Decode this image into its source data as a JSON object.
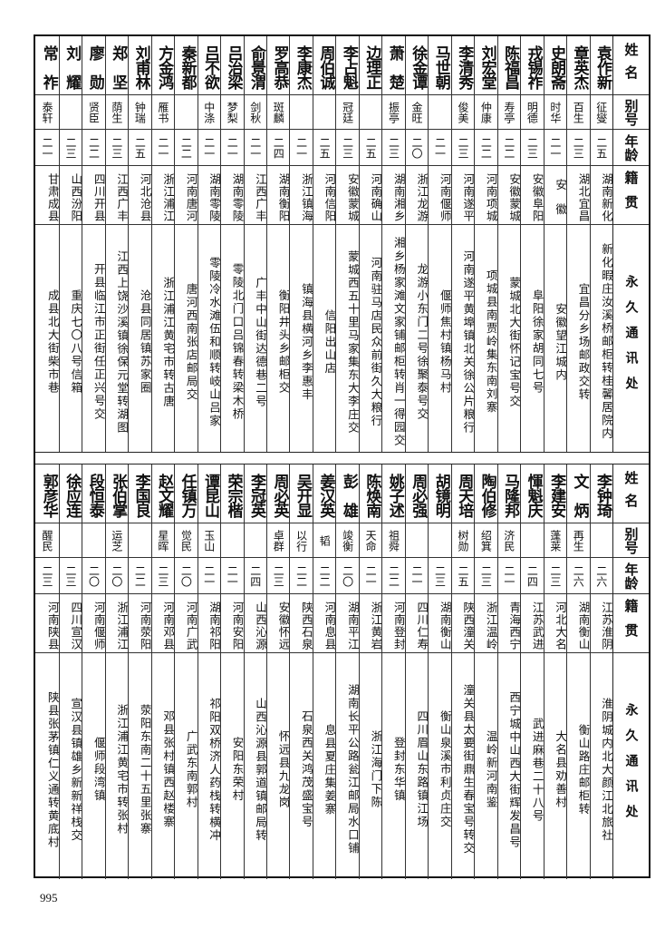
{
  "header_labels": {
    "name": "姓名",
    "alias": "别号",
    "age": "年龄",
    "native": "籍贯",
    "address": "永久通讯处"
  },
  "sections": [
    {
      "people": [
        {
          "name": "袁作新",
          "alias": "征燮",
          "age": "二五",
          "native": "湖南新化",
          "address": "新化暇庄汝溪桥邮柜转桂馨居院内"
        },
        {
          "name": "章英杰",
          "alias": "百生",
          "age": "二三",
          "native": "湖北宜昌",
          "address": "宜昌分乡场邮政交转"
        },
        {
          "name": "史朗斋",
          "alias": "时华",
          "age": "二一",
          "native": "安　徽",
          "address": "安徽望江城内"
        },
        {
          "name": "戎锡祚",
          "alias": "明德",
          "age": "二三",
          "native": "安徽阜阳",
          "address": "阜阳徐家胡同七号"
        },
        {
          "name": "陈福昌",
          "alias": "寿亭",
          "age": "二二",
          "native": "安徽蒙城",
          "address": "蒙城北大街怀记宝号交"
        },
        {
          "name": "刘宏堂",
          "alias": "仲康",
          "age": "二二",
          "native": "河南项城",
          "address": "项城县南贾岭集东南刘寨"
        },
        {
          "name": "李清秀",
          "alias": "俊美",
          "age": "二三",
          "native": "河南遂平",
          "address": "河南遂平黄埠镇北关徐公片粮行"
        },
        {
          "name": "马世朝",
          "alias": "",
          "age": "二一",
          "native": "河南偃师",
          "address": "偃师焦村镇杨马村"
        },
        {
          "name": "徐金谭",
          "alias": "金旺",
          "age": "二〇",
          "native": "浙江龙游",
          "address": "龙游小东门二号徐聚泰号交"
        },
        {
          "name": "萧　楚",
          "alias": "振亭",
          "age": "二三",
          "native": "湖南湘乡",
          "address": "湘乡杨家滩文家铺邮柜转肖一得园交"
        },
        {
          "name": "边理正",
          "alias": "",
          "age": "二五",
          "native": "河南确山",
          "address": "河南驻马店民众前街久大粮行"
        },
        {
          "name": "李占魁",
          "alias": "冠廷",
          "age": "二三",
          "native": "安徽蒙城",
          "address": "蒙城西五十里马家集东大李庄交"
        },
        {
          "name": "周伯诚",
          "alias": "",
          "age": "二五",
          "native": "河南信阳",
          "address": "信阳出山店"
        },
        {
          "name": "李康杰",
          "alias": "",
          "age": "二一",
          "native": "浙江镇海",
          "address": "镇海县横河乡李惠丰"
        },
        {
          "name": "罗高恭",
          "alias": "斑麟",
          "age": "二四",
          "native": "湖南衡阳",
          "address": "衡阳井头乡邮柜交"
        },
        {
          "name": "俞景渭",
          "alias": "剑秋",
          "age": "二一",
          "native": "江西广丰",
          "address": "广丰中山街达德巷二号"
        },
        {
          "name": "吕治梁",
          "alias": "梦梨",
          "age": "二一",
          "native": "湖南零陵",
          "address": "零陵北门口吕锦春转梁木桥"
        },
        {
          "name": "吕不欲",
          "alias": "中涤",
          "age": "二一",
          "native": "湖南零陵",
          "address": "零陵冷水滩伍和顺转岐山吕家"
        },
        {
          "name": "秦新都",
          "alias": "",
          "age": "二二",
          "native": "河南唐河",
          "address": "唐河西南张店邮局交"
        },
        {
          "name": "方金鸿",
          "alias": "雁书",
          "age": "二一",
          "native": "浙江浦江",
          "address": "浙江浦江黄宅市转古唐"
        },
        {
          "name": "刘甫林",
          "alias": "钟瑞",
          "age": "二五",
          "native": "河北沧县",
          "address": "沧县同居镇苏家圈"
        },
        {
          "name": "郑　坚",
          "alias": "荫生",
          "age": "二三",
          "native": "江西广丰",
          "address": "江西上饶沙溪镇徐保元堂转湖图"
        },
        {
          "name": "廖　勋",
          "alias": "贤臣",
          "age": "二二",
          "native": "四川开县",
          "address": "开县临江市正街任正兴号交"
        },
        {
          "name": "刘　耀",
          "alias": "",
          "age": "二三",
          "native": "山西汾阳",
          "address": "重庆七〇八号信箱"
        },
        {
          "name": "常　祚",
          "alias": "泰轩",
          "age": "二一",
          "native": "甘肃成县",
          "address": "成县北大街柴市巷"
        }
      ]
    },
    {
      "people": [
        {
          "name": "李钟琦",
          "alias": "",
          "age": "二六",
          "native": "江苏淮阴",
          "address": "淮阴城内北大颜江北旅社"
        },
        {
          "name": "文　炳",
          "alias": "再生",
          "age": "二六",
          "native": "湖南衡山",
          "address": "衡山路庄邮柜转"
        },
        {
          "name": "李建安",
          "alias": "蓬莱",
          "age": "二三",
          "native": "河北大名",
          "address": "大名县劝善村"
        },
        {
          "name": "惲魁庆",
          "alias": "",
          "age": "二四",
          "native": "江苏武进",
          "address": "武进麻巷二十八号"
        },
        {
          "name": "马隆邦",
          "alias": "济民",
          "age": "二一",
          "native": "青海西宁",
          "address": "西宁城中山西大街辉发昌号"
        },
        {
          "name": "陶伯修",
          "alias": "绍箕",
          "age": "二三",
          "native": "浙江温岭",
          "address": "温岭新河南鉴"
        },
        {
          "name": "周天培",
          "alias": "树勋",
          "age": "二五",
          "native": "陕西潼关",
          "address": "潼关县太要街鼎生春宝号转交"
        },
        {
          "name": "胡镜明",
          "alias": "",
          "age": "二三",
          "native": "湖南衡山",
          "address": "衡山泉溪市利贞庄交"
        },
        {
          "name": "周必强",
          "alias": "",
          "age": "二一",
          "native": "四川仁寿",
          "address": "四川眉山东路镇江场"
        },
        {
          "name": "姚子述",
          "alias": "祖舜",
          "age": "二二",
          "native": "河南登封",
          "address": "登封东华镇"
        },
        {
          "name": "陈焕南",
          "alias": "天命",
          "age": "二一",
          "native": "浙江黄岩",
          "address": "浙江海门下陈"
        },
        {
          "name": "彭　雄",
          "alias": "竣衡",
          "age": "二〇",
          "native": "湖南平江",
          "address": "湖南长平公路瓮江邮局水口铺"
        },
        {
          "name": "姜汉英",
          "alias": "韬",
          "age": "二二",
          "native": "河南息县",
          "address": "息县夏庄集姜寨"
        },
        {
          "name": "吴开显",
          "alias": "以行",
          "age": "二二",
          "native": "陕西石泉",
          "address": "石泉西关鸿茂盛宝号"
        },
        {
          "name": "周必英",
          "alias": "卓群",
          "age": "二三",
          "native": "安徽怀远",
          "address": "怀远县九龙岗"
        },
        {
          "name": "李冠英",
          "alias": "",
          "age": "二四",
          "native": "山西沁源",
          "address": "山西沁源县郭道镇邮局转"
        },
        {
          "name": "荣宗楷",
          "alias": "",
          "age": "二一",
          "native": "河南安阳",
          "address": "安阳东荣村"
        },
        {
          "name": "谭昆山",
          "alias": "玉山",
          "age": "二一",
          "native": "湖南祁阳",
          "address": "祁阳双桥济人药栈转横冲"
        },
        {
          "name": "任镇万",
          "alias": "觉民",
          "age": "二〇",
          "native": "河南广武",
          "address": "广武东南郭村"
        },
        {
          "name": "赵文耀",
          "alias": "星晖",
          "age": "二三",
          "native": "河南邓县",
          "address": "邓县张村镇西赵楼寨"
        },
        {
          "name": "李国良",
          "alias": "",
          "age": "二二",
          "native": "河南荥阳",
          "address": "荥阳东南二十五里张寨"
        },
        {
          "name": "张伯掌",
          "alias": "运芝",
          "age": "二〇",
          "native": "浙江浦江",
          "address": "浙江浦江黄宅市转张村"
        },
        {
          "name": "段恒泰",
          "alias": "",
          "age": "二〇",
          "native": "河南偃师",
          "address": "偃师段湾镇"
        },
        {
          "name": "徐应连",
          "alias": "",
          "age": "二三",
          "native": "四川宣汉",
          "address": "宣汉县镇雄乡新新祥栈交"
        },
        {
          "name": "郭彦华",
          "alias": "醒民",
          "age": "二三",
          "native": "河南陕县",
          "address": "陕县张茅镇仁义通转黄底村"
        }
      ]
    }
  ],
  "page_number": "995"
}
